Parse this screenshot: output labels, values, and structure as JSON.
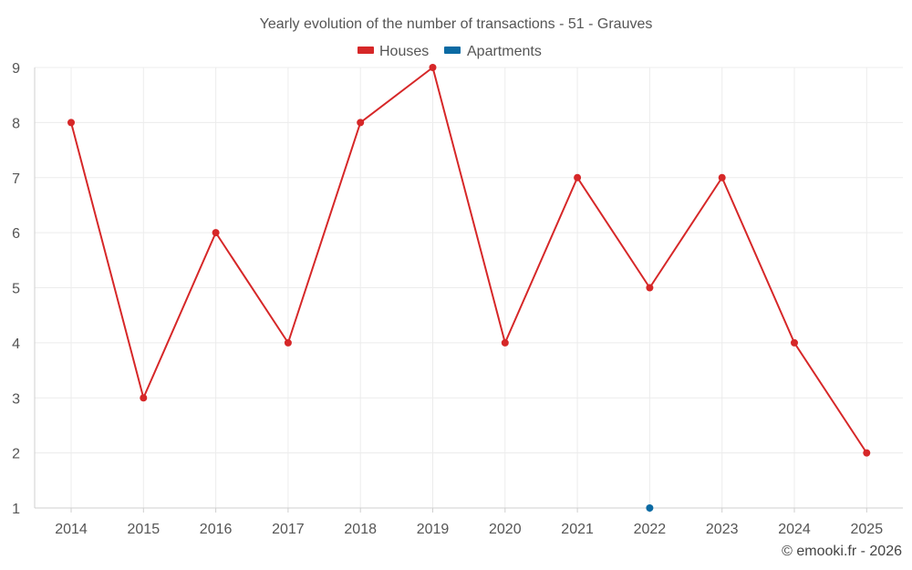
{
  "chart_data": {
    "type": "line",
    "title": "Yearly evolution of the number of transactions - 51 - Grauves",
    "categories": [
      "2014",
      "2015",
      "2016",
      "2017",
      "2018",
      "2019",
      "2020",
      "2021",
      "2022",
      "2023",
      "2024",
      "2025"
    ],
    "ylim": [
      1,
      9
    ],
    "yticks": [
      "1",
      "2",
      "3",
      "4",
      "5",
      "6",
      "7",
      "8",
      "9"
    ],
    "grid": true,
    "legend_position": "top-center",
    "series": [
      {
        "name": "Houses",
        "color": "#d62728",
        "values": [
          8,
          3,
          6,
          4,
          8,
          9,
          4,
          7,
          5,
          7,
          4,
          2
        ]
      },
      {
        "name": "Apartments",
        "color": "#0b6aa3",
        "values": [
          null,
          null,
          null,
          null,
          null,
          null,
          null,
          null,
          1,
          null,
          null,
          null
        ]
      }
    ],
    "credit": "© emooki.fr - 2026"
  }
}
